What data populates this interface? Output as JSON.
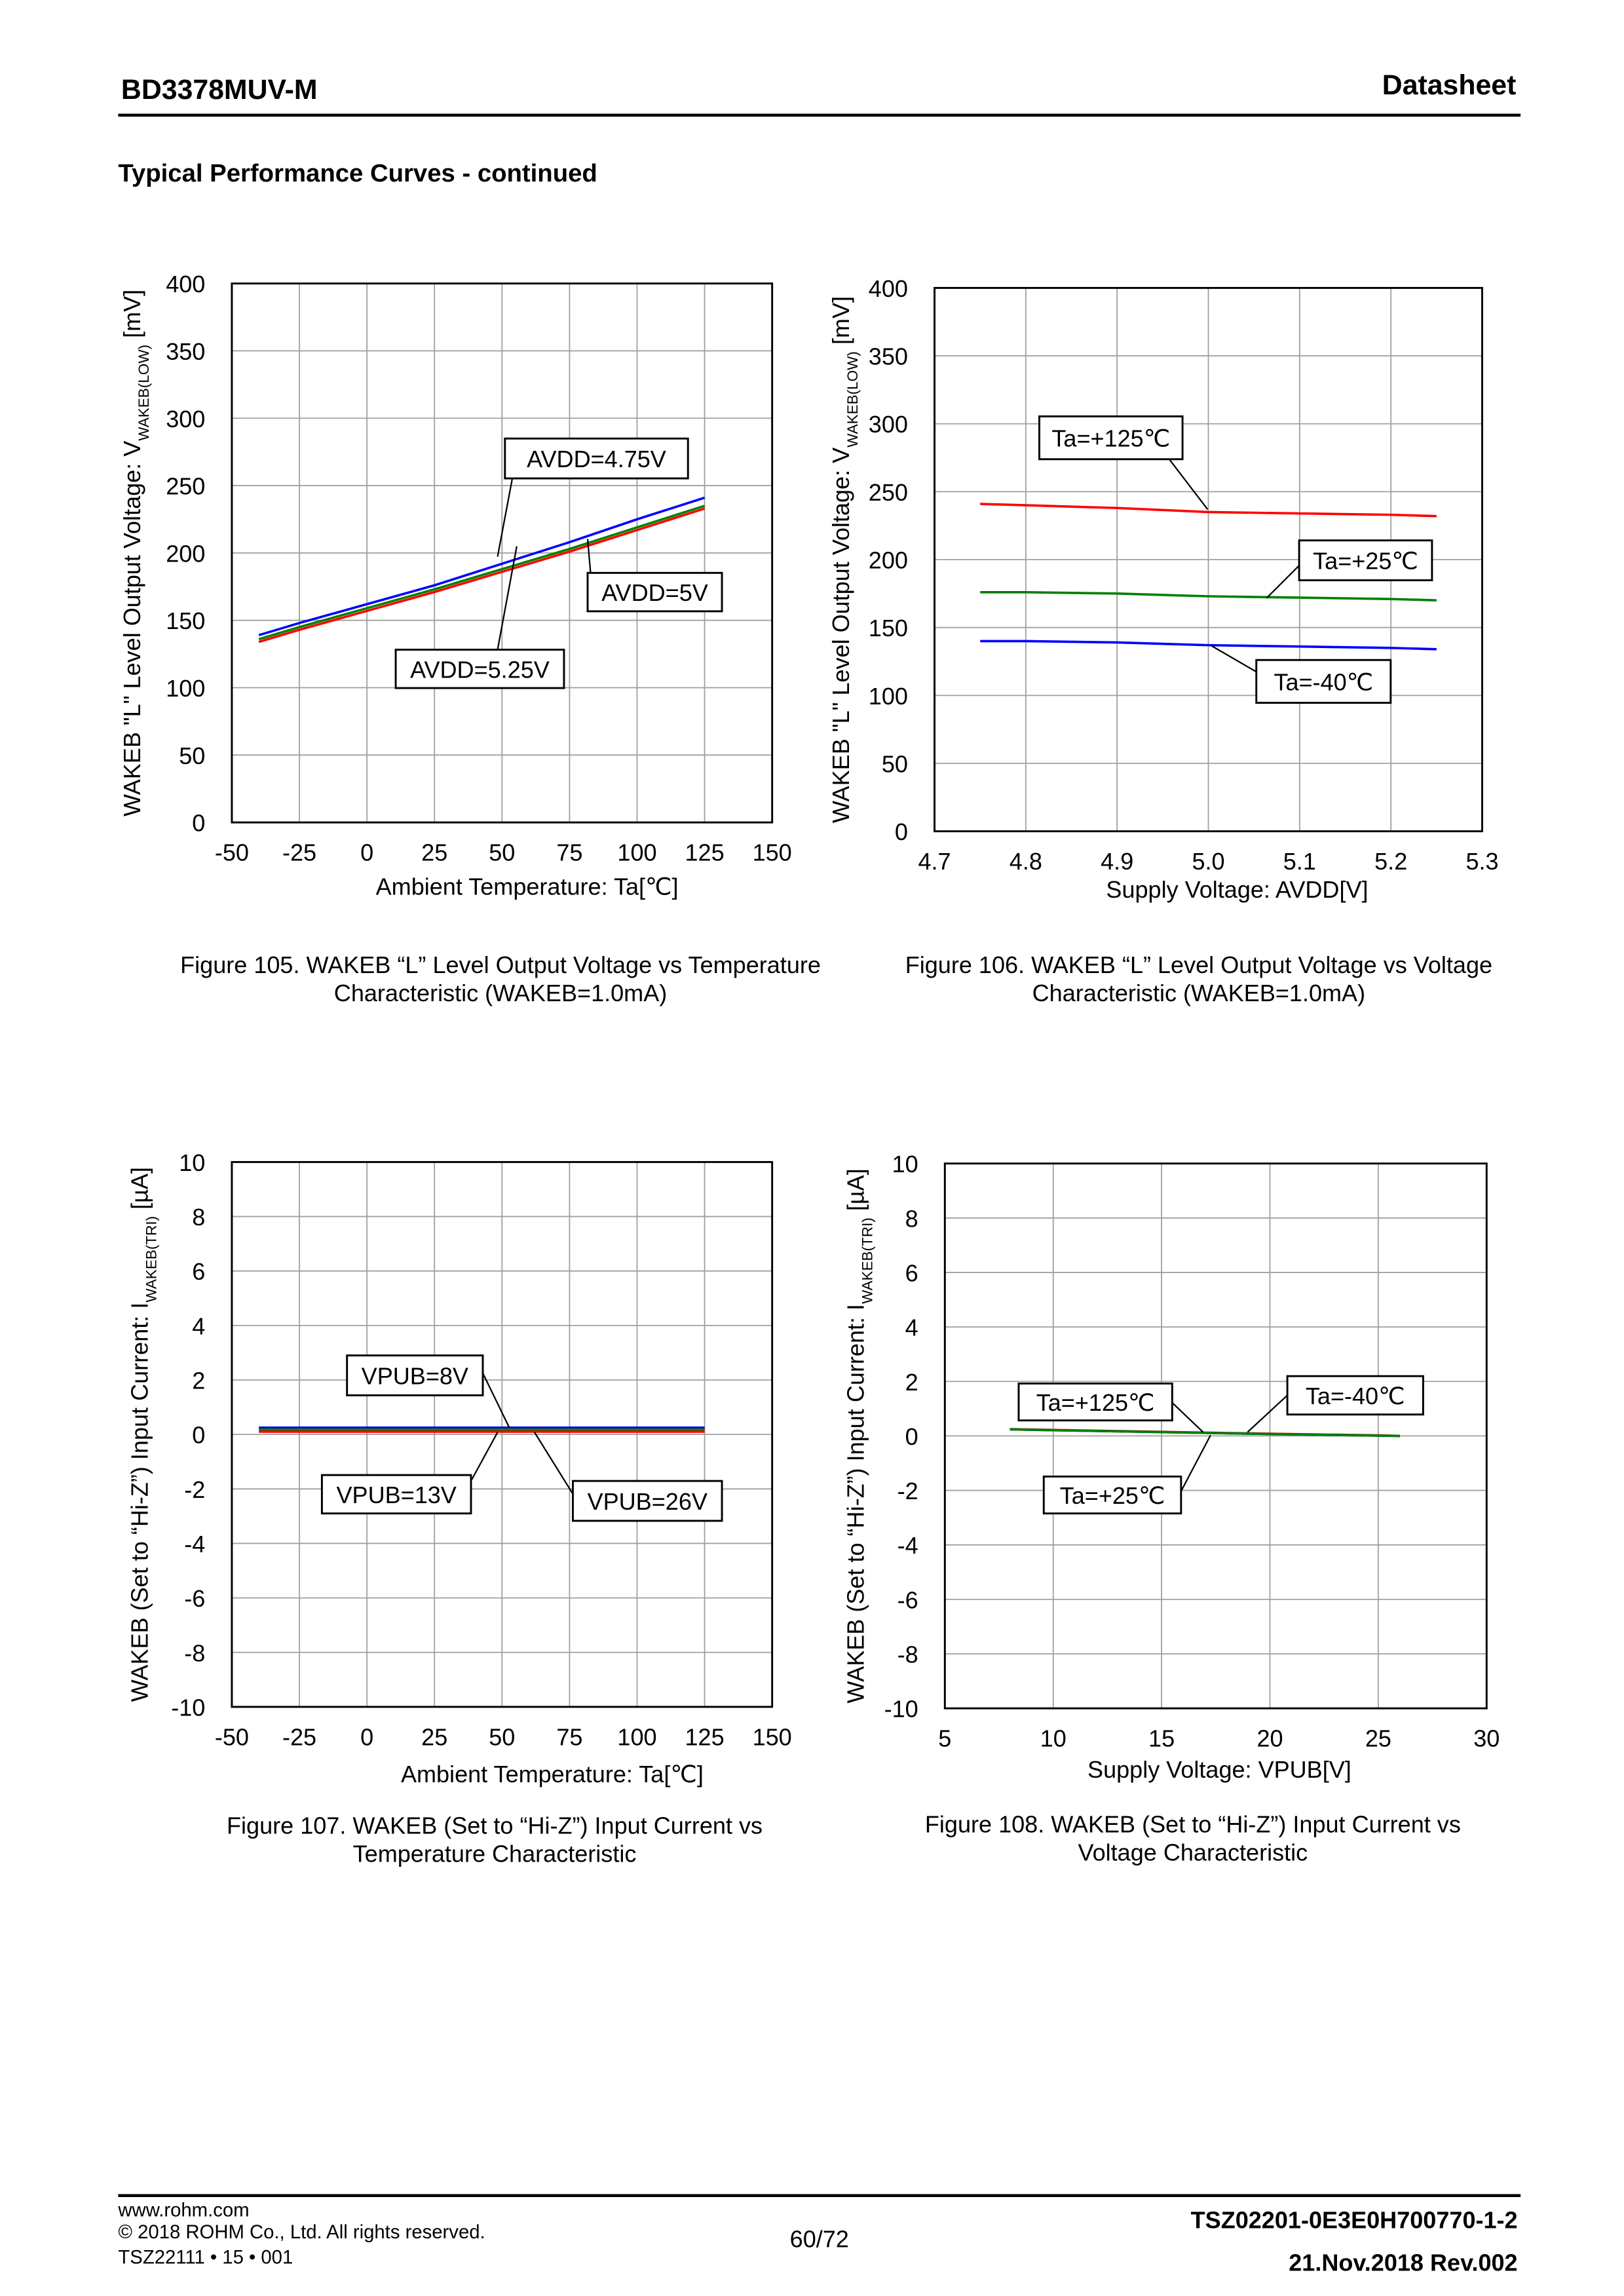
{
  "header": {
    "part_number": "BD3378MUV-M",
    "doc_type": "Datasheet"
  },
  "section_title": "Typical Performance Curves - continued",
  "chart_data": [
    {
      "type": "line",
      "ylabel": [
        "WAKEB \"L\" Level Output Voltage: V",
        "WAKEB(LOW)",
        " [mV]"
      ],
      "xlabel": "Ambient Temperature: Ta[℃]",
      "caption": [
        "Figure 105. WAKEB “L” Level Output Voltage vs Temperature",
        "Characteristic (WAKEB=1.0mA)"
      ],
      "x": [
        -40,
        -25,
        0,
        25,
        50,
        75,
        100,
        125
      ],
      "series": [
        {
          "name": "AVDD=4.75V",
          "color": "#0000ff",
          "values": [
            139,
            148,
            162,
            176,
            192,
            208,
            225,
            241
          ]
        },
        {
          "name": "AVDD=5V",
          "color": "#008000",
          "values": [
            136,
            145,
            159,
            173,
            188,
            203,
            219,
            235
          ]
        },
        {
          "name": "AVDD=5.25V",
          "color": "#ff0000",
          "values": [
            134,
            143,
            157,
            171,
            186,
            201,
            217,
            233
          ]
        }
      ],
      "xlim": [
        -50,
        150
      ],
      "xticks": [
        -50,
        -25,
        0,
        25,
        50,
        75,
        100,
        125,
        150
      ],
      "ylim": [
        0,
        400
      ],
      "yticks": [
        0,
        50,
        100,
        150,
        200,
        250,
        300,
        350,
        400
      ],
      "grid": true
    },
    {
      "type": "line",
      "ylabel": [
        "WAKEB \"L\" Level Output Voltage: V",
        "WAKEB(LOW)",
        " [mV]"
      ],
      "xlabel": "Supply Voltage: AVDD[V]",
      "caption": [
        "Figure 106. WAKEB “L” Level Output Voltage vs Voltage",
        "Characteristic (WAKEB=1.0mA)"
      ],
      "x": [
        4.75,
        4.8,
        4.9,
        5.0,
        5.1,
        5.2,
        5.25
      ],
      "series": [
        {
          "name": "Ta=+125℃",
          "color": "#ff0000",
          "values": [
            241,
            240,
            238,
            235,
            234,
            233,
            232
          ]
        },
        {
          "name": "Ta=+25℃",
          "color": "#008000",
          "values": [
            176,
            176,
            175,
            173,
            172,
            171,
            170
          ]
        },
        {
          "name": "Ta=-40℃",
          "color": "#0000ff",
          "values": [
            140,
            140,
            139,
            137,
            136,
            135,
            134
          ]
        }
      ],
      "xlim": [
        4.7,
        5.3
      ],
      "xticks": [
        4.7,
        4.8,
        4.9,
        {
          "value": 5,
          "label": "5.0"
        },
        5.1,
        5.2,
        5.3
      ],
      "ylim": [
        0,
        400
      ],
      "yticks": [
        0,
        50,
        100,
        150,
        200,
        250,
        300,
        350,
        400
      ],
      "grid": true
    },
    {
      "type": "line",
      "ylabel": [
        "WAKEB (Set to “Hi-Z”) Input Current: I",
        "WAKEB(TRI)",
        " [µA]"
      ],
      "xlabel": "Ambient Temperature: Ta[℃]",
      "caption": [
        "Figure 107. WAKEB (Set to “Hi-Z”) Input Current vs",
        "Temperature Characteristic"
      ],
      "x": [
        -40,
        0,
        50,
        100,
        125
      ],
      "series": [
        {
          "name": "VPUB=8V",
          "color": "#0000ff",
          "values": [
            0.25,
            0.25,
            0.25,
            0.25,
            0.25
          ]
        },
        {
          "name": "VPUB=13V",
          "color": "#008000",
          "values": [
            0.18,
            0.18,
            0.18,
            0.18,
            0.18
          ]
        },
        {
          "name": "VPUB=26V",
          "color": "#ff0000",
          "values": [
            0.1,
            0.1,
            0.1,
            0.1,
            0.1
          ]
        }
      ],
      "xlim": [
        -50,
        150
      ],
      "xticks": [
        -50,
        -25,
        0,
        25,
        50,
        75,
        100,
        125,
        150
      ],
      "ylim": [
        -10,
        10
      ],
      "yticks": [
        -10,
        -8,
        -6,
        -4,
        -2,
        0,
        2,
        4,
        6,
        8,
        10
      ],
      "grid": true
    },
    {
      "type": "line",
      "ylabel": [
        "WAKEB (Set to “Hi-Z”) Input Current: I",
        "WAKEB(TRI)",
        " [µA]"
      ],
      "xlabel": "Supply Voltage: VPUB[V]",
      "caption": [
        "Figure 108. WAKEB (Set to “Hi-Z”) Input Current vs",
        "Voltage Characteristic"
      ],
      "x": [
        8,
        10,
        15,
        20,
        25,
        26
      ],
      "series": [
        {
          "name": "Ta=+125℃",
          "color": "#ff0000",
          "values": [
            0.25,
            0.22,
            0.15,
            0.08,
            0.02,
            0
          ]
        },
        {
          "name": "Ta=-40℃",
          "color": "#0000ff",
          "values": [
            0.24,
            0.21,
            0.14,
            0.07,
            0.01,
            0
          ]
        },
        {
          "name": "Ta=+25℃",
          "color": "#008000",
          "values": [
            0.24,
            0.21,
            0.14,
            0.07,
            0.01,
            0
          ]
        }
      ],
      "xlim": [
        5,
        30
      ],
      "xticks": [
        5,
        10,
        15,
        20,
        25,
        30
      ],
      "ylim": [
        -10,
        10
      ],
      "yticks": [
        -10,
        -8,
        -6,
        -4,
        -2,
        0,
        2,
        4,
        6,
        8,
        10
      ],
      "grid": true
    }
  ],
  "footer": {
    "website": "www.rohm.com",
    "copyright": "© 2018 ROHM Co., Ltd. All rights reserved.",
    "form_code": "TSZ22111 • 15 • 001",
    "page": "60/72",
    "doc_number": "TSZ02201-0E3E0H700770-1-2",
    "date_rev": "21.Nov.2018 Rev.002"
  }
}
